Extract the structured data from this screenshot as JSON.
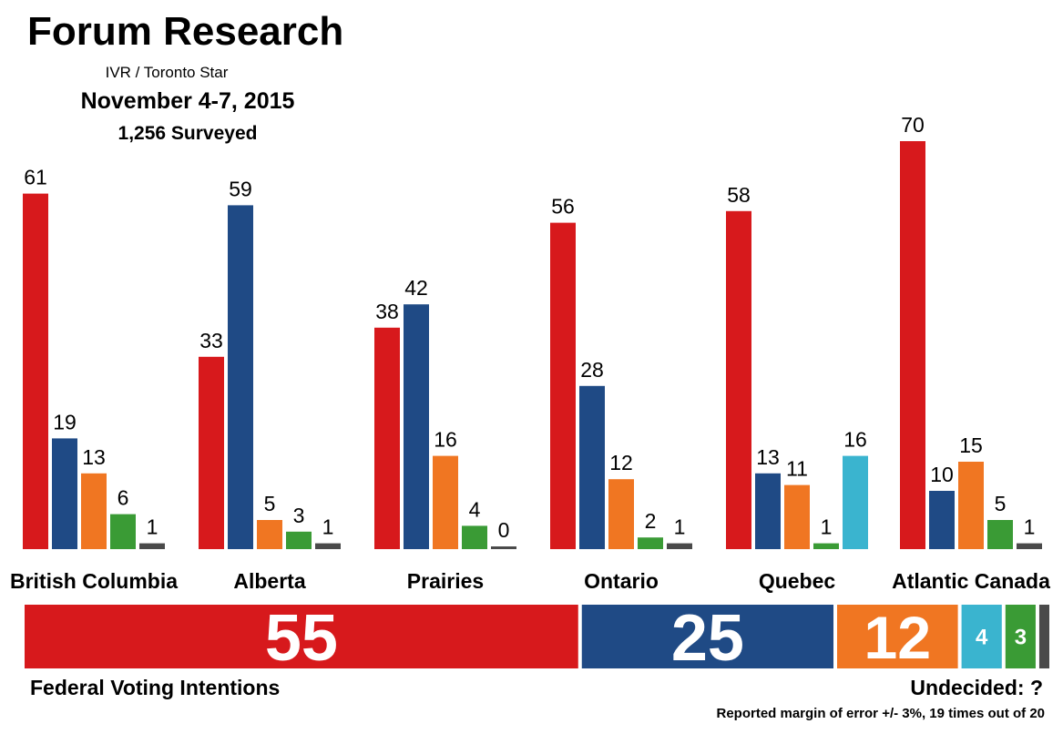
{
  "header": {
    "title": "Forum Research",
    "subtitle": "IVR / Toronto Star",
    "dates": "November 4-7, 2015",
    "surveyed": "1,256 Surveyed"
  },
  "chart_data": [
    {
      "type": "bar",
      "categories": [
        "British Columbia",
        "Alberta",
        "Prairies",
        "Ontario",
        "Quebec",
        "Atlantic Canada"
      ],
      "series": [
        {
          "color": "#d7191c",
          "values": [
            61,
            33,
            38,
            56,
            58,
            70
          ]
        },
        {
          "color": "#1f4a85",
          "values": [
            19,
            59,
            42,
            28,
            13,
            10
          ]
        },
        {
          "color": "#f07622",
          "values": [
            13,
            5,
            16,
            12,
            11,
            15
          ]
        },
        {
          "color": "#3a9b35",
          "values": [
            6,
            3,
            4,
            2,
            1,
            5
          ]
        },
        {
          "color": "#3ab4cf",
          "values": [
            null,
            null,
            null,
            null,
            16,
            null
          ]
        },
        {
          "color": "#4a4a4a",
          "values": [
            1,
            1,
            0,
            1,
            null,
            1
          ]
        }
      ],
      "grid": false,
      "legend": "none"
    },
    {
      "type": "bar",
      "orientation": "horizontal-stacked",
      "segments": [
        {
          "value": 55,
          "color": "#d7191c"
        },
        {
          "value": 25,
          "color": "#1f4a85"
        },
        {
          "value": 12,
          "color": "#f07622"
        },
        {
          "value": 4,
          "color": "#3ab4cf"
        },
        {
          "value": 3,
          "color": "#3a9b35"
        },
        {
          "value": 1,
          "color": "#4a4a4a"
        }
      ],
      "xlabel": "Federal Voting Intentions"
    }
  ],
  "footer": {
    "undecided": "Undecided: ?",
    "margin_note": "Reported margin of error +/- 3%, 19 times out of 20"
  }
}
